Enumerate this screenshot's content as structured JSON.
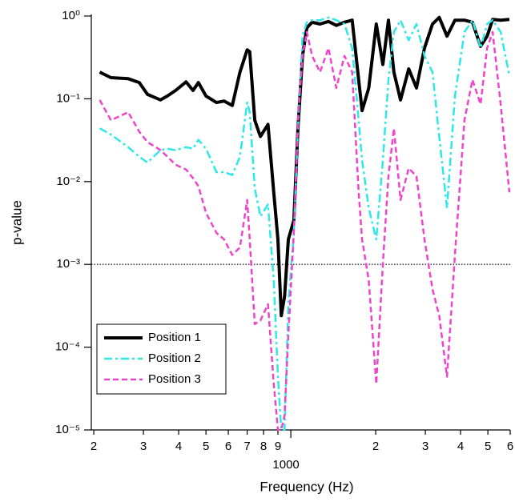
{
  "chart_data": {
    "type": "line",
    "ylabel": "p-value",
    "xlabel": "Frequency (Hz)",
    "xscale": "log",
    "yscale": "log",
    "xlim": [
      196,
      6000
    ],
    "ylim": [
      1e-05,
      1
    ],
    "xticks": [
      {
        "value": 200,
        "label": "2"
      },
      {
        "value": 300,
        "label": "3"
      },
      {
        "value": 400,
        "label": "4"
      },
      {
        "value": 500,
        "label": "5"
      },
      {
        "value": 600,
        "label": "6"
      },
      {
        "value": 700,
        "label": "7"
      },
      {
        "value": 800,
        "label": "8"
      },
      {
        "value": 900,
        "label": "9"
      },
      {
        "value": 1000,
        "label": "1000"
      },
      {
        "value": 2000,
        "label": "2"
      },
      {
        "value": 3000,
        "label": "3"
      },
      {
        "value": 4000,
        "label": "4"
      },
      {
        "value": 5000,
        "label": "5"
      },
      {
        "value": 6000,
        "label": "6"
      }
    ],
    "yticks": [
      {
        "value": 1e-05,
        "label": "10⁻⁵"
      },
      {
        "value": 0.0001,
        "label": "10⁻⁴"
      },
      {
        "value": 0.001,
        "label": "10⁻³"
      },
      {
        "value": 0.01,
        "label": "10⁻²"
      },
      {
        "value": 0.1,
        "label": "10⁻¹"
      },
      {
        "value": 1,
        "label": "10⁰"
      }
    ],
    "hline": 0.001,
    "legend": "lower left",
    "x": [
      210,
      230,
      265,
      290,
      310,
      345,
      365,
      390,
      425,
      450,
      470,
      500,
      545,
      580,
      620,
      660,
      700,
      715,
      745,
      780,
      830,
      870,
      900,
      925,
      950,
      980,
      1025,
      1060,
      1100,
      1140,
      1190,
      1270,
      1360,
      1450,
      1550,
      1650,
      1740,
      1790,
      1890,
      2010,
      2120,
      2220,
      2320,
      2450,
      2620,
      2790,
      2980,
      3180,
      3360,
      3580,
      3820,
      4130,
      4410,
      4710,
      4970,
      5200,
      5550,
      5960
    ],
    "series": [
      {
        "name": "Position 1",
        "color": "#000000",
        "dash": "solid",
        "width": 4,
        "values": [
          0.21,
          0.18,
          0.175,
          0.157,
          0.113,
          0.097,
          0.108,
          0.126,
          0.16,
          0.126,
          0.157,
          0.108,
          0.09,
          0.094,
          0.083,
          0.21,
          0.39,
          0.37,
          0.055,
          0.035,
          0.049,
          0.0074,
          0.002,
          0.00024,
          0.00041,
          0.002,
          0.0034,
          0.044,
          0.33,
          0.72,
          0.84,
          0.8,
          0.86,
          0.77,
          0.84,
          0.89,
          0.17,
          0.072,
          0.135,
          0.8,
          0.26,
          0.89,
          0.21,
          0.097,
          0.23,
          0.135,
          0.41,
          0.8,
          0.96,
          0.57,
          0.89,
          0.89,
          0.84,
          0.43,
          0.57,
          0.91,
          0.89,
          0.91
        ]
      },
      {
        "name": "Position 2",
        "color": "#2ee8e8",
        "dash": "dashdot",
        "width": 2.5,
        "values": [
          0.044,
          0.037,
          0.026,
          0.02,
          0.017,
          0.024,
          0.025,
          0.024,
          0.026,
          0.025,
          0.032,
          0.025,
          0.013,
          0.013,
          0.012,
          0.02,
          0.09,
          0.069,
          0.0083,
          0.0038,
          0.0053,
          0.00064,
          4.4e-05,
          1e-05,
          1e-05,
          0.00033,
          0.0024,
          0.044,
          0.57,
          0.84,
          0.89,
          0.89,
          0.96,
          0.89,
          0.8,
          0.41,
          0.055,
          0.018,
          0.0048,
          0.002,
          0.018,
          0.17,
          0.64,
          0.89,
          0.51,
          0.8,
          0.33,
          0.21,
          0.035,
          0.0048,
          0.108,
          0.64,
          0.89,
          0.41,
          0.8,
          0.89,
          0.64,
          0.19
        ]
      },
      {
        "name": "Position 3",
        "color": "#ee44cc",
        "dash": "dashed",
        "width": 2.5,
        "values": [
          0.097,
          0.055,
          0.069,
          0.04,
          0.03,
          0.024,
          0.02,
          0.016,
          0.014,
          0.011,
          0.0088,
          0.0042,
          0.0024,
          0.002,
          0.0013,
          0.0016,
          0.006,
          0.002,
          0.00019,
          0.00021,
          0.00033,
          3.6e-05,
          1e-05,
          1e-05,
          1.5e-05,
          0.00014,
          0.0024,
          0.055,
          0.33,
          0.64,
          0.33,
          0.21,
          0.41,
          0.135,
          0.33,
          0.21,
          0.0074,
          0.002,
          0.00064,
          3.6e-05,
          0.001,
          0.0116,
          0.044,
          0.006,
          0.0145,
          0.0116,
          0.002,
          0.0005,
          0.00024,
          4.4e-05,
          0.0013,
          0.055,
          0.17,
          0.086,
          0.41,
          0.64,
          0.086,
          0.0074
        ]
      }
    ]
  }
}
